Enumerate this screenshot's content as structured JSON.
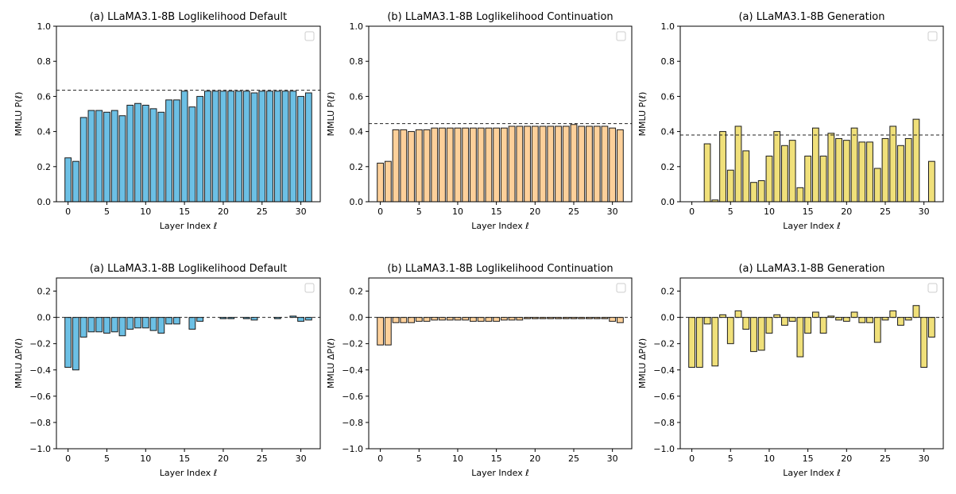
{
  "figure": {
    "layout": "2x3 grid of bar charts"
  },
  "chart_data": [
    {
      "type": "bar",
      "title": "(a) LLaMA3.1-8B Loglikelihood Default",
      "xlabel": "Layer Index ℓ",
      "ylabel": "MMLU P(ℓ)",
      "ylim": [
        0,
        1.0
      ],
      "xlim": [
        -1.5,
        32.5
      ],
      "yticks": [
        0.0,
        0.2,
        0.4,
        0.6,
        0.8,
        1.0
      ],
      "ytick_labels": [
        "0.0",
        "0.2",
        "0.4",
        "0.6",
        "0.8",
        "1.0"
      ],
      "xticks": [
        0,
        5,
        10,
        15,
        20,
        25,
        30
      ],
      "xtick_labels": [
        "0",
        "5",
        "10",
        "15",
        "20",
        "25",
        "30"
      ],
      "bar_color": "#6cc0e5",
      "reference_line": 0.635,
      "legend": "top-right (empty)",
      "categories": [
        0,
        1,
        2,
        3,
        4,
        5,
        6,
        7,
        8,
        9,
        10,
        11,
        12,
        13,
        14,
        15,
        16,
        17,
        18,
        19,
        20,
        21,
        22,
        23,
        24,
        25,
        26,
        27,
        28,
        29,
        30,
        31
      ],
      "values": [
        0.25,
        0.23,
        0.48,
        0.52,
        0.52,
        0.51,
        0.52,
        0.49,
        0.55,
        0.56,
        0.55,
        0.53,
        0.51,
        0.58,
        0.58,
        0.63,
        0.54,
        0.6,
        0.63,
        0.63,
        0.63,
        0.63,
        0.63,
        0.63,
        0.62,
        0.63,
        0.63,
        0.63,
        0.63,
        0.63,
        0.6,
        0.62
      ]
    },
    {
      "type": "bar",
      "title": "(b) LLaMA3.1-8B Loglikelihood Continuation",
      "xlabel": "Layer Index ℓ",
      "ylabel": "MMLU P(ℓ)",
      "ylim": [
        0,
        1.0
      ],
      "xlim": [
        -1.5,
        32.5
      ],
      "yticks": [
        0.0,
        0.2,
        0.4,
        0.6,
        0.8,
        1.0
      ],
      "ytick_labels": [
        "0.0",
        "0.2",
        "0.4",
        "0.6",
        "0.8",
        "1.0"
      ],
      "xticks": [
        0,
        5,
        10,
        15,
        20,
        25,
        30
      ],
      "xtick_labels": [
        "0",
        "5",
        "10",
        "15",
        "20",
        "25",
        "30"
      ],
      "bar_color": "#fdd09a",
      "reference_line": 0.445,
      "legend": "top-right (empty)",
      "categories": [
        0,
        1,
        2,
        3,
        4,
        5,
        6,
        7,
        8,
        9,
        10,
        11,
        12,
        13,
        14,
        15,
        16,
        17,
        18,
        19,
        20,
        21,
        22,
        23,
        24,
        25,
        26,
        27,
        28,
        29,
        30,
        31
      ],
      "values": [
        0.22,
        0.23,
        0.41,
        0.41,
        0.4,
        0.41,
        0.41,
        0.42,
        0.42,
        0.42,
        0.42,
        0.42,
        0.42,
        0.42,
        0.42,
        0.42,
        0.42,
        0.43,
        0.43,
        0.43,
        0.43,
        0.43,
        0.43,
        0.43,
        0.43,
        0.44,
        0.43,
        0.43,
        0.43,
        0.43,
        0.42,
        0.41
      ]
    },
    {
      "type": "bar",
      "title": "(a) LLaMA3.1-8B Generation",
      "xlabel": "Layer Index ℓ",
      "ylabel": "MMLU P(ℓ)",
      "ylim": [
        0,
        1.0
      ],
      "xlim": [
        -1.5,
        32.5
      ],
      "yticks": [
        0.0,
        0.2,
        0.4,
        0.6,
        0.8,
        1.0
      ],
      "ytick_labels": [
        "0.0",
        "0.2",
        "0.4",
        "0.6",
        "0.8",
        "1.0"
      ],
      "xticks": [
        0,
        5,
        10,
        15,
        20,
        25,
        30
      ],
      "xtick_labels": [
        "0",
        "5",
        "10",
        "15",
        "20",
        "25",
        "30"
      ],
      "bar_color": "#f0e07a",
      "reference_line": 0.38,
      "legend": "top-right (empty)",
      "categories": [
        0,
        1,
        2,
        3,
        4,
        5,
        6,
        7,
        8,
        9,
        10,
        11,
        12,
        13,
        14,
        15,
        16,
        17,
        18,
        19,
        20,
        21,
        22,
        23,
        24,
        25,
        26,
        27,
        28,
        29,
        30,
        31
      ],
      "values": [
        0.0,
        0.0,
        0.33,
        0.01,
        0.4,
        0.18,
        0.43,
        0.29,
        0.11,
        0.12,
        0.26,
        0.4,
        0.32,
        0.35,
        0.08,
        0.26,
        0.42,
        0.26,
        0.39,
        0.36,
        0.35,
        0.42,
        0.34,
        0.34,
        0.19,
        0.36,
        0.43,
        0.32,
        0.36,
        0.47,
        0.0,
        0.23
      ]
    },
    {
      "type": "bar",
      "title": "(a) LLaMA3.1-8B Loglikelihood Default",
      "xlabel": "Layer Index ℓ",
      "ylabel": "MMLU ΔP(ℓ)",
      "ylim": [
        -1.0,
        0.3
      ],
      "xlim": [
        -1.5,
        32.5
      ],
      "yticks": [
        -1.0,
        -0.8,
        -0.6,
        -0.4,
        -0.2,
        0.0,
        0.2
      ],
      "ytick_labels": [
        "−1.0",
        "−0.8",
        "−0.6",
        "−0.4",
        "−0.2",
        "0.0",
        "0.2"
      ],
      "xticks": [
        0,
        5,
        10,
        15,
        20,
        25,
        30
      ],
      "xtick_labels": [
        "0",
        "5",
        "10",
        "15",
        "20",
        "25",
        "30"
      ],
      "bar_color": "#6cc0e5",
      "reference_line": 0.0,
      "legend": "top-right (empty)",
      "categories": [
        0,
        1,
        2,
        3,
        4,
        5,
        6,
        7,
        8,
        9,
        10,
        11,
        12,
        13,
        14,
        15,
        16,
        17,
        18,
        19,
        20,
        21,
        22,
        23,
        24,
        25,
        26,
        27,
        28,
        29,
        30,
        31
      ],
      "values": [
        -0.38,
        -0.4,
        -0.15,
        -0.11,
        -0.11,
        -0.12,
        -0.11,
        -0.14,
        -0.09,
        -0.08,
        -0.08,
        -0.1,
        -0.12,
        -0.05,
        -0.05,
        0.0,
        -0.09,
        -0.03,
        0.0,
        0.0,
        -0.01,
        -0.01,
        0.0,
        -0.01,
        -0.02,
        0.0,
        0.0,
        -0.01,
        0.0,
        0.01,
        -0.03,
        -0.02
      ]
    },
    {
      "type": "bar",
      "title": "(b) LLaMA3.1-8B Loglikelihood Continuation",
      "xlabel": "Layer Index ℓ",
      "ylabel": "MMLU ΔP(ℓ)",
      "ylim": [
        -1.0,
        0.3
      ],
      "xlim": [
        -1.5,
        32.5
      ],
      "yticks": [
        -1.0,
        -0.8,
        -0.6,
        -0.4,
        -0.2,
        0.0,
        0.2
      ],
      "ytick_labels": [
        "−1.0",
        "−0.8",
        "−0.6",
        "−0.4",
        "−0.2",
        "0.0",
        "0.2"
      ],
      "xticks": [
        0,
        5,
        10,
        15,
        20,
        25,
        30
      ],
      "xtick_labels": [
        "0",
        "5",
        "10",
        "15",
        "20",
        "25",
        "30"
      ],
      "bar_color": "#fdd09a",
      "reference_line": 0.0,
      "legend": "top-right (empty)",
      "categories": [
        0,
        1,
        2,
        3,
        4,
        5,
        6,
        7,
        8,
        9,
        10,
        11,
        12,
        13,
        14,
        15,
        16,
        17,
        18,
        19,
        20,
        21,
        22,
        23,
        24,
        25,
        26,
        27,
        28,
        29,
        30,
        31
      ],
      "values": [
        -0.21,
        -0.21,
        -0.04,
        -0.04,
        -0.04,
        -0.03,
        -0.03,
        -0.02,
        -0.02,
        -0.02,
        -0.02,
        -0.02,
        -0.03,
        -0.03,
        -0.03,
        -0.03,
        -0.02,
        -0.02,
        -0.02,
        -0.01,
        -0.01,
        -0.01,
        -0.01,
        -0.01,
        -0.01,
        -0.01,
        -0.01,
        -0.01,
        -0.01,
        -0.01,
        -0.03,
        -0.04
      ]
    },
    {
      "type": "bar",
      "title": "(a) LLaMA3.1-8B Generation",
      "xlabel": "Layer Index ℓ",
      "ylabel": "MMLU ΔP(ℓ)",
      "ylim": [
        -1.0,
        0.3
      ],
      "xlim": [
        -1.5,
        32.5
      ],
      "yticks": [
        -1.0,
        -0.8,
        -0.6,
        -0.4,
        -0.2,
        0.0,
        0.2
      ],
      "ytick_labels": [
        "−1.0",
        "−0.8",
        "−0.6",
        "−0.4",
        "−0.2",
        "0.0",
        "0.2"
      ],
      "xticks": [
        0,
        5,
        10,
        15,
        20,
        25,
        30
      ],
      "xtick_labels": [
        "0",
        "5",
        "10",
        "15",
        "20",
        "25",
        "30"
      ],
      "bar_color": "#f0e07a",
      "reference_line": 0.0,
      "legend": "top-right (empty)",
      "categories": [
        0,
        1,
        2,
        3,
        4,
        5,
        6,
        7,
        8,
        9,
        10,
        11,
        12,
        13,
        14,
        15,
        16,
        17,
        18,
        19,
        20,
        21,
        22,
        23,
        24,
        25,
        26,
        27,
        28,
        29,
        30,
        31
      ],
      "values": [
        -0.38,
        -0.38,
        -0.05,
        -0.37,
        0.02,
        -0.2,
        0.05,
        -0.09,
        -0.26,
        -0.25,
        -0.12,
        0.02,
        -0.06,
        -0.03,
        -0.3,
        -0.12,
        0.04,
        -0.12,
        0.01,
        -0.02,
        -0.03,
        0.04,
        -0.04,
        -0.04,
        -0.19,
        -0.02,
        0.05,
        -0.06,
        -0.02,
        0.09,
        -0.38,
        -0.15
      ]
    }
  ]
}
